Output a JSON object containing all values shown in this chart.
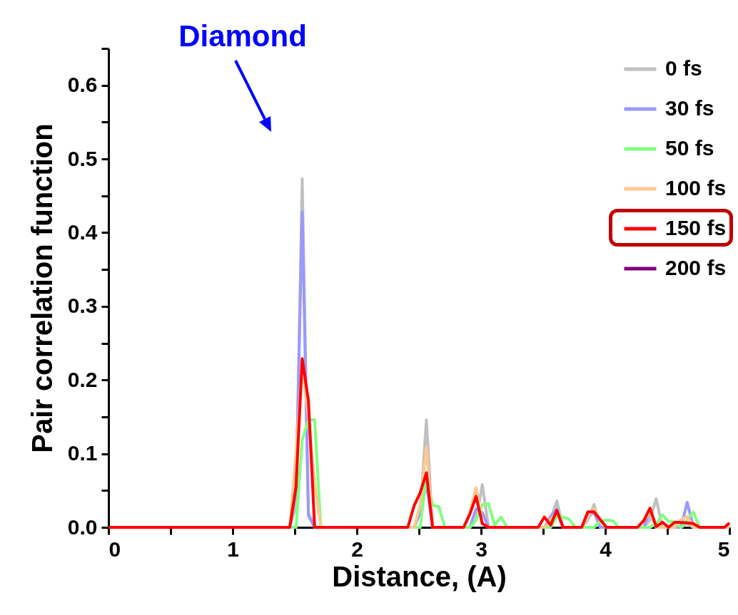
{
  "chart_data": {
    "type": "line",
    "xlabel": "Distance, (A)",
    "ylabel": "Pair correlation function",
    "annotations": [
      "Diamond"
    ],
    "xlim": [
      0,
      5
    ],
    "ylim": [
      0,
      0.65
    ],
    "xticks": [
      0,
      {
        "value": 0.5,
        "label": null
      },
      1,
      {
        "value": 1.5,
        "label": null
      },
      2,
      {
        "value": 2.5,
        "label": null
      },
      3,
      {
        "value": 3.5,
        "label": null
      },
      4,
      {
        "value": 4.5,
        "label": null
      },
      5
    ],
    "yticks": [
      {
        "value": 0,
        "label": "0.0"
      },
      {
        "value": 0.05,
        "label": null
      },
      {
        "value": 0.1,
        "label": "0.1"
      },
      {
        "value": 0.15,
        "label": null
      },
      {
        "value": 0.2,
        "label": "0.2"
      },
      {
        "value": 0.25,
        "label": null
      },
      {
        "value": 0.3,
        "label": "0.3"
      },
      {
        "value": 0.35,
        "label": null
      },
      {
        "value": 0.4,
        "label": "0.4"
      },
      {
        "value": 0.45,
        "label": null
      },
      {
        "value": 0.5,
        "label": "0.5"
      },
      {
        "value": 0.55,
        "label": null
      },
      {
        "value": 0.6,
        "label": "0.6"
      },
      {
        "value": 0.65,
        "label": null
      }
    ],
    "grid": false,
    "legend": "top right",
    "series": [
      {
        "name": "0 fs",
        "color": "#c0c0c0",
        "x": [
          0,
          1.46,
          1.51,
          1.56,
          1.61,
          1.66,
          2.46,
          2.51,
          2.56,
          2.61,
          2.91,
          2.96,
          3.01,
          3.06,
          3.51,
          3.56,
          3.61,
          3.66,
          3.81,
          3.86,
          3.91,
          3.96,
          4.31,
          4.36,
          4.41,
          4.46,
          4.61,
          4.66,
          4.71,
          5
        ],
        "values": [
          0,
          0,
          0.03,
          0.473,
          0.02,
          0,
          0,
          0.02,
          0.146,
          0,
          0,
          0.01,
          0.058,
          0,
          0,
          0.01,
          0.036,
          0,
          0,
          0.01,
          0.031,
          0,
          0,
          0.01,
          0.039,
          0,
          0,
          0.005,
          0,
          0
        ]
      },
      {
        "name": "30 fs",
        "color": "#9999ff",
        "x": [
          0,
          1.46,
          1.51,
          1.56,
          1.61,
          1.66,
          2.46,
          2.51,
          2.56,
          2.61,
          2.91,
          2.96,
          3.01,
          3.06,
          3.51,
          3.56,
          3.61,
          3.66,
          3.81,
          3.86,
          3.91,
          3.96,
          4.31,
          4.36,
          4.41,
          4.61,
          4.66,
          4.71,
          5
        ],
        "values": [
          0,
          0,
          0.05,
          0.428,
          0.016,
          0,
          0,
          0.02,
          0.06,
          0,
          0,
          0.025,
          0.02,
          0,
          0,
          0.015,
          0.025,
          0,
          0,
          0.015,
          0.02,
          0,
          0,
          0.022,
          0,
          0,
          0.034,
          0,
          0
        ]
      },
      {
        "name": "50 fs",
        "color": "#80ff80",
        "x": [
          0,
          1.51,
          1.56,
          1.61,
          1.66,
          1.71,
          2.51,
          2.56,
          2.61,
          2.66,
          2.71,
          2.91,
          2.96,
          3.01,
          3.06,
          3.11,
          3.16,
          3.21,
          3.56,
          3.61,
          3.66,
          3.71,
          3.76,
          3.91,
          3.96,
          4.01,
          4.06,
          4.11,
          4.36,
          4.41,
          4.46,
          4.51,
          4.56,
          4.61,
          4.66,
          4.71,
          4.76,
          5
        ],
        "values": [
          0,
          0,
          0.119,
          0.146,
          0.146,
          0,
          0,
          0.07,
          0.03,
          0.028,
          0,
          0,
          0.01,
          0.031,
          0.032,
          0.003,
          0.014,
          0,
          0,
          0.015,
          0.014,
          0.011,
          0,
          0,
          0.008,
          0.01,
          0.009,
          0,
          0,
          0.005,
          0.017,
          0.008,
          0.007,
          0,
          0.01,
          0.021,
          0,
          0
        ]
      },
      {
        "name": "100 fs",
        "color": "#ffc890",
        "x": [
          0,
          1.46,
          1.51,
          1.56,
          1.61,
          1.66,
          1.71,
          2.46,
          2.51,
          2.56,
          2.61,
          2.86,
          2.91,
          2.96,
          3.01,
          3.06,
          3.51,
          3.56,
          3.61,
          3.66,
          3.81,
          3.86,
          3.91,
          3.96,
          4.01,
          4.26,
          4.31,
          4.36,
          4.41,
          4.56,
          4.61,
          4.66,
          4.71,
          5
        ],
        "values": [
          0,
          0,
          0.1,
          0.22,
          0.15,
          0.06,
          0,
          0,
          0.03,
          0.109,
          0,
          0,
          0.02,
          0.054,
          0.005,
          0,
          0,
          0.01,
          0.02,
          0,
          0,
          0.015,
          0.025,
          0.01,
          0,
          0,
          0.01,
          0.02,
          0,
          0,
          0.01,
          0.015,
          0,
          0
        ]
      },
      {
        "name": "150 fs",
        "color": "#ff0000",
        "x": [
          0,
          1.41,
          1.46,
          1.51,
          1.56,
          1.61,
          1.66,
          2.41,
          2.46,
          2.51,
          2.56,
          2.61,
          2.86,
          2.91,
          2.96,
          3.01,
          3.06,
          3.46,
          3.51,
          3.56,
          3.61,
          3.66,
          3.81,
          3.86,
          3.91,
          4.01,
          4.26,
          4.31,
          4.36,
          4.41,
          4.46,
          4.51,
          4.56,
          4.66,
          4.71,
          4.76,
          4.96,
          5
        ],
        "values": [
          0,
          0,
          0,
          0.055,
          0.229,
          0.172,
          0,
          0,
          0.029,
          0.047,
          0.074,
          0,
          0,
          0.018,
          0.042,
          0.005,
          0,
          0,
          0.014,
          0.003,
          0.023,
          0,
          0,
          0.021,
          0.021,
          0,
          0,
          0.009,
          0.026,
          0.001,
          0.007,
          0,
          0.007,
          0.006,
          0.005,
          0,
          0,
          0.006
        ]
      },
      {
        "name": "200 fs",
        "color": "#800080"
      }
    ]
  }
}
